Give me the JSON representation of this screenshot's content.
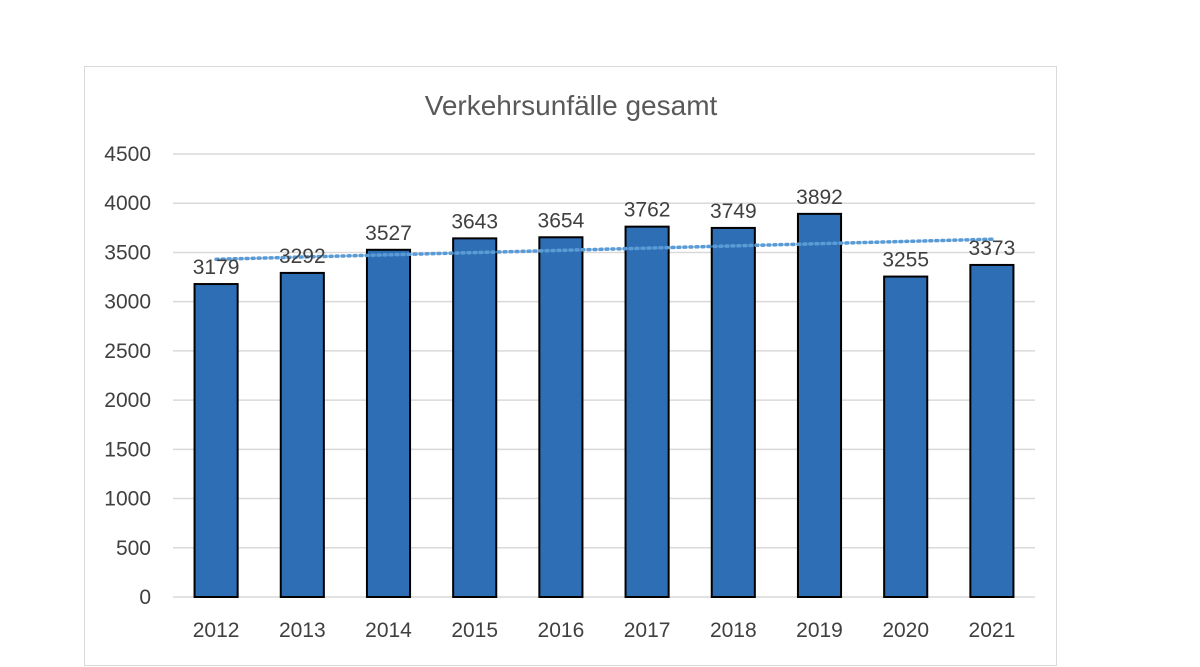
{
  "chart_data": {
    "type": "bar",
    "title": "Verkehrsunfälle gesamt",
    "xlabel": "",
    "ylabel": "",
    "categories": [
      "2012",
      "2013",
      "2014",
      "2015",
      "2016",
      "2017",
      "2018",
      "2019",
      "2020",
      "2021"
    ],
    "series": [
      {
        "values": [
          3179,
          3292,
          3527,
          3643,
          3654,
          3762,
          3749,
          3892,
          3255,
          3373
        ]
      }
    ],
    "trendline": {
      "type": "linear",
      "style": "dotted"
    },
    "ylim": [
      0,
      4500
    ],
    "yticks": [
      0,
      500,
      1000,
      1500,
      2000,
      2500,
      3000,
      3500,
      4000,
      4500
    ],
    "grid": true,
    "legend": "none",
    "data_labels": true,
    "colors": {
      "bar_fill": "#2e6eb5",
      "bar_stroke": "#000000",
      "trendline": "#5b9bd5",
      "grid": "#d9d9d9",
      "title": "#595959",
      "text": "#404040"
    }
  }
}
